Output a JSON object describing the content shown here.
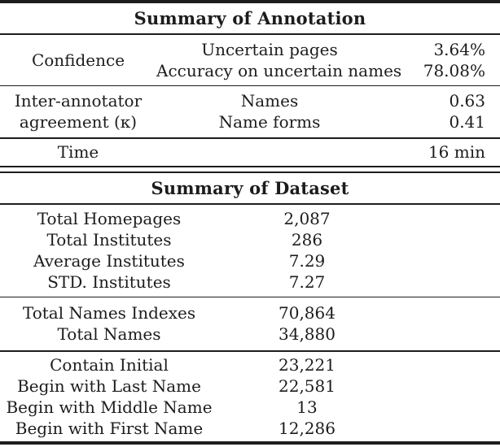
{
  "page": {
    "background": "#ffffff",
    "text_color": "#1c1c1c",
    "rule_color": "#1d1d1d"
  },
  "annotation_table": {
    "title": "Summary of Annotation",
    "groups": [
      {
        "label_lines": [
          "Confidence"
        ],
        "rows": [
          {
            "metric": "Uncertain pages",
            "value": "3.64%"
          },
          {
            "metric": "Accuracy on uncertain names",
            "value": "78.08%"
          }
        ]
      },
      {
        "label_lines": [
          "Inter-annotator",
          "agreement (κ)"
        ],
        "rows": [
          {
            "metric": "Names",
            "value": "0.63"
          },
          {
            "metric": "Name forms",
            "value": "0.41"
          }
        ]
      },
      {
        "label_lines": [
          "Time"
        ],
        "rows": [
          {
            "metric": "",
            "value": "16 min"
          }
        ]
      }
    ]
  },
  "dataset_table": {
    "title": "Summary of Dataset",
    "groups": [
      {
        "rows": [
          [
            "Total Homepages",
            "2,087"
          ],
          [
            "Total Institutes",
            "286"
          ],
          [
            "Average Institutes",
            "7.29"
          ],
          [
            "STD. Institutes",
            "7.27"
          ]
        ]
      },
      {
        "rows": [
          [
            "Total Names Indexes",
            "70,864"
          ],
          [
            "Total Names",
            "34,880"
          ]
        ]
      },
      {
        "rows": [
          [
            "Contain Initial",
            "23,221"
          ],
          [
            "Begin with Last Name",
            "22,581"
          ],
          [
            "Begin with Middle Name",
            "13"
          ],
          [
            "Begin with First Name",
            "12,286"
          ]
        ]
      }
    ]
  }
}
